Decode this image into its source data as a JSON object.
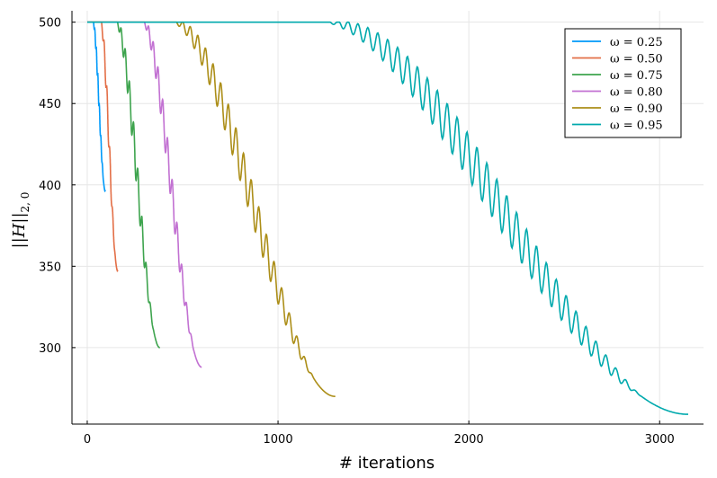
{
  "chart_data": {
    "type": "line",
    "xlabel": "# iterations",
    "ylabel": "||H||",
    "ylabel_sub": "2, 0",
    "xlim": [
      -80,
      3230
    ],
    "ylim": [
      253,
      507
    ],
    "xticks": [
      0,
      1000,
      2000,
      3000
    ],
    "yticks": [
      300,
      350,
      400,
      450,
      500
    ],
    "grid": true,
    "legend_position": "top-right",
    "series": [
      {
        "name": "ω = 0.25",
        "color": "#009AFA",
        "start": 30,
        "end": 95,
        "final": 396,
        "period": 8,
        "amp": 4
      },
      {
        "name": "ω = 0.50",
        "color": "#E36F47",
        "start": 70,
        "end": 160,
        "final": 347,
        "period": 15,
        "amp": 7
      },
      {
        "name": "ω = 0.75",
        "color": "#3EA44E",
        "start": 150,
        "end": 380,
        "final": 300,
        "period": 22,
        "amp": 10
      },
      {
        "name": "ω = 0.80",
        "color": "#C271D2",
        "start": 290,
        "end": 600,
        "final": 288,
        "period": 25,
        "amp": 10
      },
      {
        "name": "ω = 0.90",
        "color": "#AC8E18",
        "start": 450,
        "end": 1300,
        "final": 270,
        "period": 40,
        "amp": 12
      },
      {
        "name": "ω = 0.95",
        "color": "#00A9AD",
        "start": 1250,
        "end": 3150,
        "final": 259,
        "period": 52,
        "amp": 14
      }
    ]
  }
}
